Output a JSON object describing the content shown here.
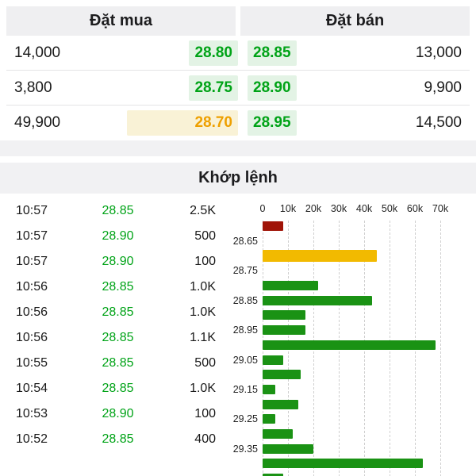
{
  "colors": {
    "up": "#00a317",
    "reference": "#eea000",
    "down": "#a6150b",
    "bar_up": "#1a9214",
    "bar_down": "#a01408",
    "bar_reference": "#f2ba00",
    "hl_green": "#e3f3e5",
    "hl_yellow": "#f9f2d6",
    "text": "#1a1a1a"
  },
  "order_book": {
    "buy_header": "Đặt mua",
    "sell_header": "Đặt bán",
    "rows": [
      {
        "buy_qty": "14,000",
        "buy_price": "28.80",
        "buy_price_color": "up",
        "buy_highlight": "green",
        "sell_price": "28.85",
        "sell_price_color": "up",
        "sell_highlight": "green",
        "sell_qty": "13,000"
      },
      {
        "buy_qty": "3,800",
        "buy_price": "28.75",
        "buy_price_color": "up",
        "buy_highlight": "green",
        "sell_price": "28.90",
        "sell_price_color": "up",
        "sell_highlight": "green",
        "sell_qty": "9,900"
      },
      {
        "buy_qty": "49,900",
        "buy_price": "28.70",
        "buy_price_color": "reference",
        "buy_highlight": "yellow-wide",
        "sell_price": "28.95",
        "sell_price_color": "up",
        "sell_highlight": "green",
        "sell_qty": "14,500"
      }
    ]
  },
  "matched": {
    "title": "Khớp lệnh",
    "rows": [
      {
        "time": "10:57",
        "price": "28.85",
        "volume": "2.5K"
      },
      {
        "time": "10:57",
        "price": "28.90",
        "volume": "500"
      },
      {
        "time": "10:57",
        "price": "28.90",
        "volume": "100"
      },
      {
        "time": "10:56",
        "price": "28.85",
        "volume": "1.0K"
      },
      {
        "time": "10:56",
        "price": "28.85",
        "volume": "1.0K"
      },
      {
        "time": "10:56",
        "price": "28.85",
        "volume": "1.1K"
      },
      {
        "time": "10:55",
        "price": "28.85",
        "volume": "500"
      },
      {
        "time": "10:54",
        "price": "28.85",
        "volume": "1.0K"
      },
      {
        "time": "10:53",
        "price": "28.90",
        "volume": "100"
      },
      {
        "time": "10:52",
        "price": "28.85",
        "volume": "400"
      }
    ]
  },
  "chart_data": {
    "type": "bar",
    "orientation": "horizontal",
    "title": "",
    "xlabel": "",
    "ylabel": "",
    "x_ticks": [
      "0",
      "10k",
      "20k",
      "30k",
      "40k",
      "50k",
      "60k",
      "70k"
    ],
    "xlim": [
      0,
      80000
    ],
    "grid": "dashed-vertical",
    "y_tick_labels": [
      "28.65",
      "28.75",
      "28.85",
      "28.95",
      "29.05",
      "29.15",
      "29.25",
      "29.35"
    ],
    "rows": [
      {
        "price": "28.60",
        "label": "",
        "value": 8000,
        "color": "down"
      },
      {
        "price": "28.65",
        "label": "28.65",
        "value": 0,
        "color": "none"
      },
      {
        "price": "28.70",
        "label": "",
        "value": 45000,
        "color": "reference"
      },
      {
        "price": "28.75",
        "label": "28.75",
        "value": 0,
        "color": "none"
      },
      {
        "price": "28.80",
        "label": "",
        "value": 22000,
        "color": "up"
      },
      {
        "price": "28.85",
        "label": "28.85",
        "value": 43000,
        "color": "up"
      },
      {
        "price": "28.90",
        "label": "",
        "value": 17000,
        "color": "up"
      },
      {
        "price": "28.95",
        "label": "28.95",
        "value": 17000,
        "color": "up"
      },
      {
        "price": "29.00",
        "label": "",
        "value": 68000,
        "color": "up"
      },
      {
        "price": "29.05",
        "label": "29.05",
        "value": 8000,
        "color": "up"
      },
      {
        "price": "29.10",
        "label": "",
        "value": 15000,
        "color": "up"
      },
      {
        "price": "29.15",
        "label": "29.15",
        "value": 5000,
        "color": "up"
      },
      {
        "price": "29.20",
        "label": "",
        "value": 14000,
        "color": "up"
      },
      {
        "price": "29.25",
        "label": "29.25",
        "value": 5000,
        "color": "up"
      },
      {
        "price": "29.30",
        "label": "",
        "value": 12000,
        "color": "up"
      },
      {
        "price": "29.35",
        "label": "29.35",
        "value": 20000,
        "color": "up"
      },
      {
        "price": "29.40",
        "label": "",
        "value": 63000,
        "color": "up"
      },
      {
        "price": "29.45",
        "label": "",
        "value": 8000,
        "color": "up"
      }
    ]
  }
}
